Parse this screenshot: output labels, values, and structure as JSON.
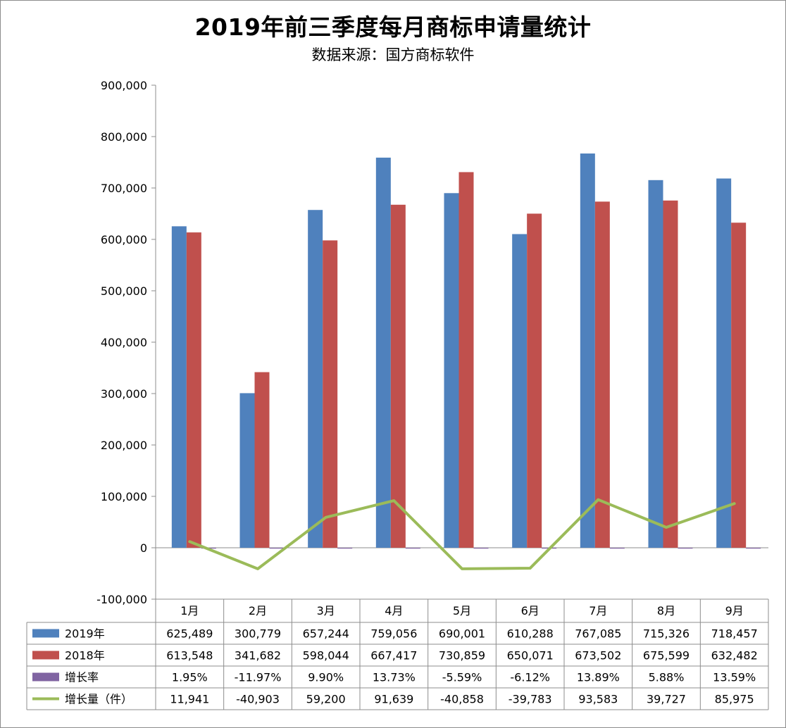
{
  "chart_data": {
    "type": "bar",
    "title": "2019年前三季度每月商标申请量统计",
    "subtitle": "数据来源：国方商标软件",
    "categories": [
      "1月",
      "2月",
      "3月",
      "4月",
      "5月",
      "6月",
      "7月",
      "8月",
      "9月"
    ],
    "ylim": [
      -100000,
      900000
    ],
    "yticks": [
      900000,
      800000,
      700000,
      600000,
      500000,
      400000,
      300000,
      200000,
      100000,
      0,
      -100000
    ],
    "ytick_labels": [
      "900,000",
      "800,000",
      "700,000",
      "600,000",
      "500,000",
      "400,000",
      "300,000",
      "200,000",
      "100,000",
      "0",
      "-100,000"
    ],
    "grid": false,
    "legend": "data-table",
    "series": [
      {
        "name": "2019年",
        "kind": "bar",
        "color": "#4f81bd",
        "values": [
          625489,
          300779,
          657244,
          759056,
          690001,
          610288,
          767085,
          715326,
          718457
        ],
        "labels": [
          "625,489",
          "300,779",
          "657,244",
          "759,056",
          "690,001",
          "610,288",
          "767,085",
          "715,326",
          "718,457"
        ]
      },
      {
        "name": "2018年",
        "kind": "bar",
        "color": "#c0504d",
        "values": [
          613548,
          341682,
          598044,
          667417,
          730859,
          650071,
          673502,
          675599,
          632482
        ],
        "labels": [
          "613,548",
          "341,682",
          "598,044",
          "667,417",
          "730,859",
          "650,071",
          "673,502",
          "675,599",
          "632,482"
        ]
      },
      {
        "name": "增长率",
        "kind": "bar",
        "color": "#8064a2",
        "values": [
          0.0195,
          -0.1197,
          0.099,
          0.1373,
          -0.0559,
          -0.0612,
          0.1389,
          0.0588,
          0.1359
        ],
        "labels": [
          "1.95%",
          "-11.97%",
          "9.90%",
          "13.73%",
          "-5.59%",
          "-6.12%",
          "13.89%",
          "5.88%",
          "13.59%"
        ]
      },
      {
        "name": "增长量（件）",
        "kind": "line",
        "color": "#9bbb59",
        "values": [
          11941,
          -40903,
          59200,
          91639,
          -40858,
          -39783,
          93583,
          39727,
          85975
        ],
        "labels": [
          "11,941",
          "-40,903",
          "59,200",
          "91,639",
          "-40,858",
          "-39,783",
          "93,583",
          "39,727",
          "85,975"
        ]
      }
    ]
  }
}
